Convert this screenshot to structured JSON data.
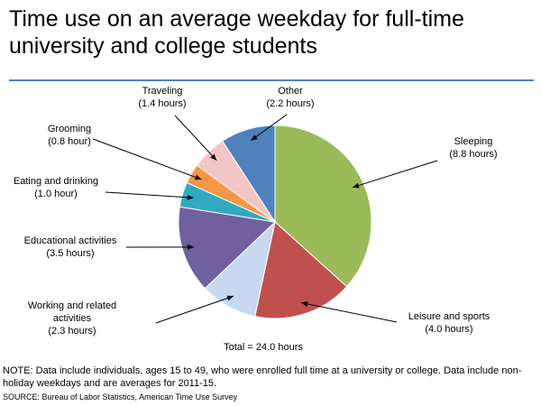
{
  "title": "Time use on an average weekday for full-time university and college students",
  "note": "NOTE: Data include individuals, ages 15 to 49, who were enrolled full time at a university or college. Data include non-holiday weekdays and are averages for 2011-15.",
  "source": "SOURCE: Bureau of Labor Statistics, American Time Use Survey",
  "colors": {
    "title_rule": "#4f81bd"
  },
  "chart_data": {
    "type": "pie",
    "total_label": "Total = 24.0 hours",
    "total": 24.0,
    "slices": [
      {
        "name": "Sleeping",
        "value": 8.8,
        "value_label": "(8.8 hours)",
        "color": "#9bbb59"
      },
      {
        "name": "Leisure and sports",
        "value": 4.0,
        "value_label": "(4.0 hours)",
        "color": "#c0504d"
      },
      {
        "name": "Working and related activities",
        "value": 2.3,
        "value_label": "(2.3 hours)",
        "color": "#c6d9f1"
      },
      {
        "name": "Educational activities",
        "value": 3.5,
        "value_label": "(3.5 hours)",
        "color": "#7060a0"
      },
      {
        "name": "Eating and drinking",
        "value": 1.0,
        "value_label": "(1.0 hour)",
        "color": "#31a9c1"
      },
      {
        "name": "Grooming",
        "value": 0.8,
        "value_label": "(0.8 hour)",
        "color": "#f79646"
      },
      {
        "name": "Traveling",
        "value": 1.4,
        "value_label": "(1.4 hours)",
        "color": "#f2c6c6"
      },
      {
        "name": "Other",
        "value": 2.2,
        "value_label": "(2.2 hours)",
        "color": "#4f81bd"
      }
    ],
    "start": "top",
    "direction": "clockwise",
    "legend": "none",
    "labels": "outside-with-leader-lines"
  }
}
